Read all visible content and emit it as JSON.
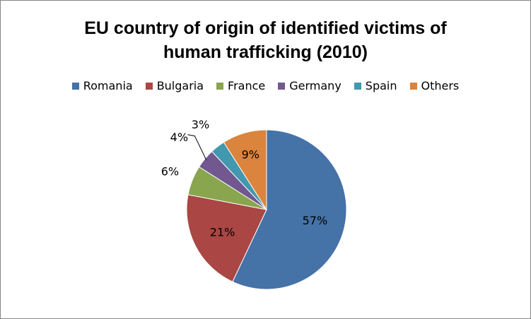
{
  "chart_data": {
    "type": "pie",
    "title": "EU country of origin of identified victims of human trafficking (2010)",
    "categories": [
      "Romania",
      "Bulgaria",
      "France",
      "Germany",
      "Spain",
      "Others"
    ],
    "values": [
      57,
      21,
      6,
      4,
      3,
      9
    ],
    "labels": [
      "57%",
      "21%",
      "6%",
      "4%",
      "3%",
      "9%"
    ],
    "colors": [
      "#4572A7",
      "#AA4643",
      "#89A54E",
      "#71588F",
      "#4198AF",
      "#DB843D"
    ],
    "legend_position": "top",
    "start_angle_deg": 0,
    "direction": "clockwise"
  }
}
